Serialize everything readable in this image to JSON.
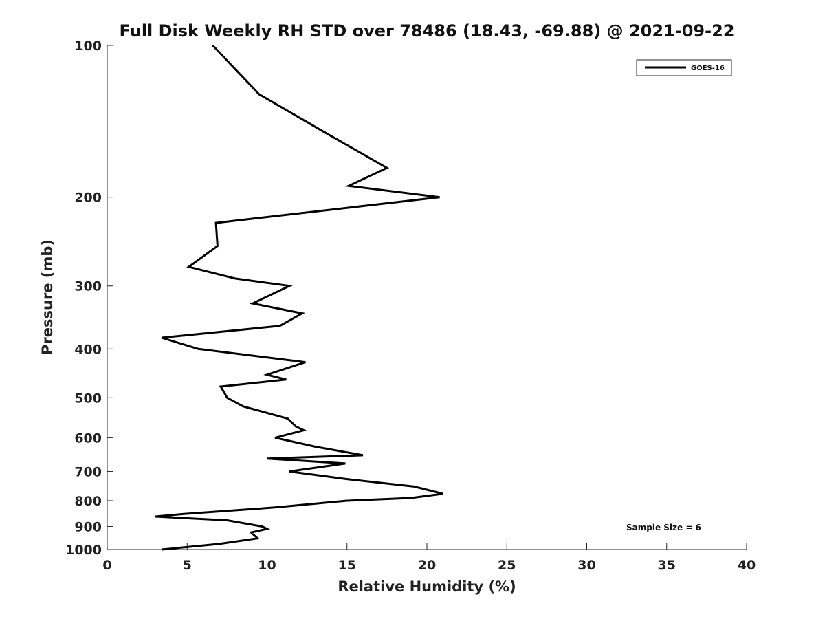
{
  "chart_data": {
    "type": "line",
    "title": "Full Disk Weekly RH STD over 78486 (18.43, -69.88) @ 2021-09-22",
    "xlabel": "Relative Humidity (%)",
    "ylabel": "Pressure (mb)",
    "xlim": [
      0,
      40
    ],
    "ylim": [
      1000,
      100
    ],
    "y_scale": "log",
    "y_inverted": true,
    "grid": false,
    "legend_position": "top-right",
    "x_ticks": [
      0,
      5,
      10,
      15,
      20,
      25,
      30,
      35,
      40
    ],
    "y_ticks": [
      100,
      200,
      300,
      400,
      500,
      600,
      700,
      800,
      900,
      1000
    ],
    "annotation": "Sample Size = 6",
    "series": [
      {
        "name": "GOES-16",
        "color": "#000000",
        "points": [
          [
            6.6,
            100
          ],
          [
            9.5,
            125
          ],
          [
            13.8,
            150
          ],
          [
            17.5,
            175
          ],
          [
            15.1,
            190
          ],
          [
            20.8,
            200
          ],
          [
            6.8,
            225
          ],
          [
            6.9,
            250
          ],
          [
            5.1,
            275
          ],
          [
            8.0,
            290
          ],
          [
            11.4,
            300
          ],
          [
            9.1,
            325
          ],
          [
            12.2,
            340
          ],
          [
            10.8,
            360
          ],
          [
            3.4,
            380
          ],
          [
            5.7,
            400
          ],
          [
            12.4,
            425
          ],
          [
            10.0,
            450
          ],
          [
            11.2,
            460
          ],
          [
            7.1,
            475
          ],
          [
            7.5,
            500
          ],
          [
            8.5,
            520
          ],
          [
            11.3,
            550
          ],
          [
            11.8,
            570
          ],
          [
            12.3,
            580
          ],
          [
            10.5,
            600
          ],
          [
            13.0,
            625
          ],
          [
            16.0,
            650
          ],
          [
            10.0,
            660
          ],
          [
            14.9,
            675
          ],
          [
            11.4,
            700
          ],
          [
            15.0,
            725
          ],
          [
            19.2,
            750
          ],
          [
            21.0,
            775
          ],
          [
            19.0,
            790
          ],
          [
            15.0,
            800
          ],
          [
            10.5,
            825
          ],
          [
            4.8,
            850
          ],
          [
            3.0,
            860
          ],
          [
            7.5,
            875
          ],
          [
            9.7,
            900
          ],
          [
            10.0,
            910
          ],
          [
            9.0,
            925
          ],
          [
            9.4,
            950
          ],
          [
            7.0,
            975
          ],
          [
            3.4,
            1000
          ]
        ]
      }
    ]
  }
}
